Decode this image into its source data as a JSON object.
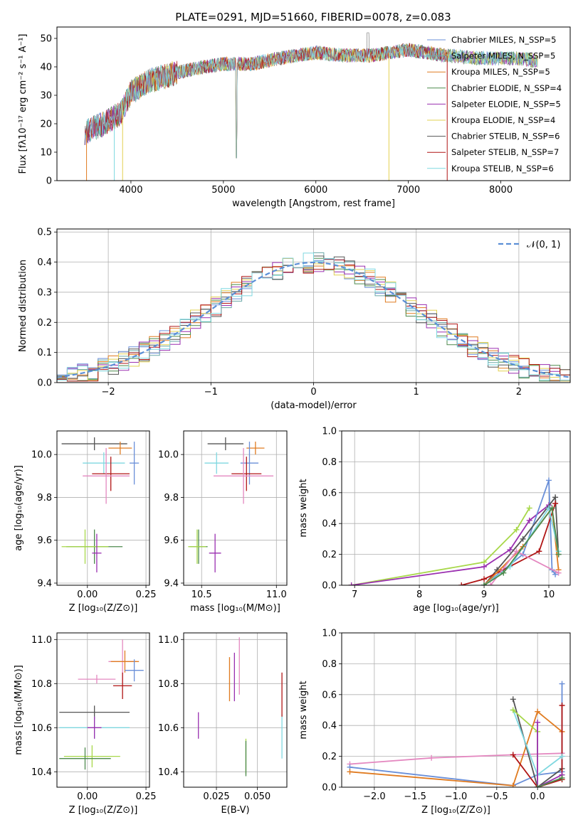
{
  "figure_title": "PLATE=0291, MJD=51660, FIBERID=0078, z=0.083",
  "colors": {
    "chabrier_miles": "#6a8fd8",
    "salpeter_miles": "#6aa8a8",
    "kroupa_miles": "#e07b20",
    "chabrier_elodie": "#4d8a4d",
    "salpeter_elodie": "#9a2fb0",
    "kroupa_elodie": "#e2d050",
    "chabrier_stelib": "#555555",
    "salpeter_stelib": "#b01515",
    "kroupa_stelib": "#7fd8e0",
    "pink": "#e488c0",
    "lime": "#a8d84a",
    "gauss": "#5b8fd6"
  },
  "chart_data": [
    {
      "type": "line",
      "title": "",
      "xlabel": "wavelength [Angstrom, rest frame]",
      "ylabel": "Flux [fλ10⁻¹⁷ erg cm⁻² s⁻¹ A⁻¹]",
      "xlim": [
        3200,
        8750
      ],
      "ylim": [
        0,
        54
      ],
      "xticks": [
        4000,
        5000,
        6000,
        7000,
        8000
      ],
      "yticks": [
        0,
        10,
        20,
        30,
        40,
        50
      ],
      "grid": false,
      "legend_position": "top-right",
      "series": [
        {
          "name": "Chabrier MILES, N_SSP=5",
          "color_key": "chabrier_miles"
        },
        {
          "name": "Salpeter MILES, N_SSP=5",
          "color_key": "salpeter_miles"
        },
        {
          "name": "Kroupa MILES, N_SSP=5",
          "color_key": "kroupa_miles"
        },
        {
          "name": "Chabrier ELODIE, N_SSP=4",
          "color_key": "chabrier_elodie"
        },
        {
          "name": "Salpeter ELODIE, N_SSP=5",
          "color_key": "salpeter_elodie"
        },
        {
          "name": "Kroupa ELODIE, N_SSP=4",
          "color_key": "kroupa_elodie"
        },
        {
          "name": "Chabrier STELIB, N_SSP=6",
          "color_key": "chabrier_stelib"
        },
        {
          "name": "Salpeter STELIB, N_SSP=7",
          "color_key": "salpeter_stelib"
        },
        {
          "name": "Kroupa STELIB, N_SSP=6",
          "color_key": "kroupa_stelib"
        }
      ],
      "continuum": {
        "x": [
          3500,
          3700,
          3900,
          4000,
          4200,
          4500,
          4800,
          5000,
          5300,
          5600,
          5800,
          6000,
          6300,
          6600,
          7000,
          7400,
          7800,
          8200,
          8400
        ],
        "y": [
          17,
          20,
          24,
          31,
          35,
          38,
          40,
          41,
          41,
          43,
          44,
          45,
          44,
          44,
          46,
          44,
          43,
          43,
          42
        ]
      }
    },
    {
      "type": "histogram",
      "title": "",
      "xlabel": "(data-model)/error",
      "ylabel": "Normed distribution",
      "xlim": [
        -2.5,
        2.5
      ],
      "ylim": [
        0,
        0.51
      ],
      "xticks": [
        -2,
        -1,
        0,
        1,
        2
      ],
      "xtick_labels": [
        "−2",
        "−1",
        "0",
        "1",
        "2"
      ],
      "yticks": [
        0.0,
        0.1,
        0.2,
        0.3,
        0.4,
        0.5
      ],
      "ytick_labels": [
        "0.0",
        "0.1",
        "0.2",
        "0.3",
        "0.4",
        "0.5"
      ],
      "grid": true,
      "legend_position": "top-right",
      "reference_curve": {
        "name": "𝒩(0, 1)",
        "color_key": "gauss"
      },
      "bin_width": 0.1
    },
    {
      "type": "scatter",
      "xlabel": "Z [log₁₀(Z/Z⊙)]",
      "ylabel": "age  [log₁₀(age/yr)]",
      "xlim": [
        -0.13,
        0.265
      ],
      "ylim": [
        9.39,
        10.11
      ],
      "xticks": [
        0.0,
        0.25
      ],
      "xtick_labels": [
        "0.00",
        "0.25"
      ],
      "yticks": [
        9.4,
        9.6,
        9.8,
        10.0
      ],
      "ytick_labels": [
        "9.4",
        "9.6",
        "9.8",
        "10.0"
      ],
      "grid": true,
      "points": [
        {
          "x": 0.03,
          "y": 10.05,
          "xerr": 0.14,
          "yerr": 0.03,
          "color_key": "chabrier_stelib"
        },
        {
          "x": 0.14,
          "y": 10.03,
          "xerr": 0.05,
          "yerr": 0.03,
          "color_key": "kroupa_miles"
        },
        {
          "x": 0.2,
          "y": 9.96,
          "xerr": 0.02,
          "yerr": 0.1,
          "color_key": "chabrier_miles"
        },
        {
          "x": 0.07,
          "y": 9.96,
          "xerr": 0.09,
          "yerr": 0.05,
          "color_key": "kroupa_stelib"
        },
        {
          "x": 0.1,
          "y": 9.91,
          "xerr": 0.08,
          "yerr": 0.08,
          "color_key": "salpeter_stelib"
        },
        {
          "x": 0.08,
          "y": 9.9,
          "xerr": 0.1,
          "yerr": 0.13,
          "color_key": "pink"
        },
        {
          "x": 0.03,
          "y": 9.57,
          "xerr": 0.12,
          "yerr": 0.08,
          "color_key": "chabrier_elodie"
        },
        {
          "x": -0.01,
          "y": 9.57,
          "xerr": 0.1,
          "yerr": 0.08,
          "color_key": "lime"
        },
        {
          "x": 0.04,
          "y": 9.54,
          "xerr": 0.02,
          "yerr": 0.09,
          "color_key": "salpeter_elodie"
        }
      ]
    },
    {
      "type": "scatter",
      "xlabel": "mass [log₁₀(M/M⊙)]",
      "ylabel": "",
      "xlim": [
        10.38,
        11.07
      ],
      "ylim": [
        9.39,
        10.11
      ],
      "xticks": [
        10.5,
        11.0
      ],
      "xtick_labels": [
        "10.5",
        "11.0"
      ],
      "yticks": [
        9.4,
        9.6,
        9.8,
        10.0
      ],
      "ytick_labels": [
        "9.4",
        "9.6",
        "9.8",
        "10.0"
      ],
      "grid": true,
      "points": [
        {
          "x": 10.66,
          "y": 10.05,
          "xerr": 0.12,
          "yerr": 0.03,
          "color_key": "chabrier_stelib"
        },
        {
          "x": 10.86,
          "y": 10.03,
          "xerr": 0.06,
          "yerr": 0.03,
          "color_key": "kroupa_miles"
        },
        {
          "x": 10.82,
          "y": 9.96,
          "xerr": 0.06,
          "yerr": 0.1,
          "color_key": "chabrier_miles"
        },
        {
          "x": 10.6,
          "y": 9.96,
          "xerr": 0.08,
          "yerr": 0.05,
          "color_key": "kroupa_stelib"
        },
        {
          "x": 10.8,
          "y": 9.91,
          "xerr": 0.1,
          "yerr": 0.08,
          "color_key": "salpeter_stelib"
        },
        {
          "x": 10.78,
          "y": 9.9,
          "xerr": 0.2,
          "yerr": 0.13,
          "color_key": "pink"
        },
        {
          "x": 10.48,
          "y": 9.57,
          "xerr": 0.06,
          "yerr": 0.08,
          "color_key": "chabrier_elodie"
        },
        {
          "x": 10.47,
          "y": 9.57,
          "xerr": 0.06,
          "yerr": 0.08,
          "color_key": "lime"
        },
        {
          "x": 10.59,
          "y": 9.54,
          "xerr": 0.04,
          "yerr": 0.09,
          "color_key": "salpeter_elodie"
        }
      ]
    },
    {
      "type": "line",
      "xlabel": "age  [log₁₀(age/yr)]",
      "ylabel": "mass weight",
      "xlim": [
        6.8,
        10.33
      ],
      "ylim": [
        0,
        1
      ],
      "xticks": [
        7,
        8,
        9,
        10
      ],
      "yticks": [
        0.0,
        0.2,
        0.4,
        0.6,
        0.8,
        1.0
      ],
      "ytick_labels": [
        "0.0",
        "0.2",
        "0.4",
        "0.6",
        "0.8",
        "1.0"
      ],
      "grid": true,
      "series": [
        {
          "color_key": "lime",
          "x": [
            6.95,
            9.0,
            9.5,
            9.7
          ],
          "y": [
            0.0,
            0.15,
            0.36,
            0.5
          ]
        },
        {
          "color_key": "salpeter_elodie",
          "x": [
            6.95,
            9.0,
            9.4,
            9.7,
            10.0
          ],
          "y": [
            0.0,
            0.12,
            0.23,
            0.42,
            0.52
          ]
        },
        {
          "color_key": "chabrier_miles",
          "x": [
            9.0,
            9.3,
            9.6,
            10.0,
            10.05,
            10.1
          ],
          "y": [
            0.0,
            0.1,
            0.2,
            0.68,
            0.1,
            0.07
          ]
        },
        {
          "color_key": "chabrier_stelib",
          "x": [
            9.0,
            9.2,
            9.6,
            10.1,
            10.15
          ],
          "y": [
            0.0,
            0.1,
            0.3,
            0.57,
            0.2
          ]
        },
        {
          "color_key": "salpeter_stelib",
          "x": [
            8.65,
            9.0,
            9.3,
            9.85,
            10.1
          ],
          "y": [
            0.0,
            0.04,
            0.1,
            0.22,
            0.53
          ]
        },
        {
          "color_key": "kroupa_miles",
          "x": [
            9.0,
            9.6,
            10.05,
            10.15
          ],
          "y": [
            0.0,
            0.25,
            0.5,
            0.1
          ]
        },
        {
          "color_key": "pink",
          "x": [
            9.1,
            9.5,
            10.15
          ],
          "y": [
            0.0,
            0.22,
            0.08
          ]
        },
        {
          "color_key": "kroupa_stelib",
          "x": [
            9.0,
            9.4,
            10.0,
            10.15
          ],
          "y": [
            0.0,
            0.12,
            0.5,
            0.22
          ]
        },
        {
          "color_key": "chabrier_elodie",
          "x": [
            9.0,
            9.3,
            10.05,
            10.15
          ],
          "y": [
            0.0,
            0.08,
            0.5,
            0.2
          ]
        }
      ]
    },
    {
      "type": "scatter",
      "xlabel": "Z [log₁₀(Z/Z⊙)]",
      "ylabel": "mass [log₁₀(M/M⊙)]",
      "xlim": [
        -0.13,
        0.265
      ],
      "ylim": [
        10.33,
        11.03
      ],
      "xticks": [
        0.0,
        0.25
      ],
      "xtick_labels": [
        "0.00",
        "0.25"
      ],
      "yticks": [
        10.4,
        10.6,
        10.8,
        11.0
      ],
      "ytick_labels": [
        "10.4",
        "10.6",
        "10.8",
        "11.0"
      ],
      "grid": true,
      "points": [
        {
          "x": 0.15,
          "y": 10.9,
          "xerr": 0.06,
          "yerr": 0.1,
          "color_key": "pink"
        },
        {
          "x": 0.16,
          "y": 10.9,
          "xerr": 0.06,
          "yerr": 0.05,
          "color_key": "kroupa_miles"
        },
        {
          "x": 0.2,
          "y": 10.86,
          "xerr": 0.04,
          "yerr": 0.05,
          "color_key": "chabrier_miles"
        },
        {
          "x": 0.04,
          "y": 10.82,
          "xerr": 0.08,
          "yerr": 0.02,
          "color_key": "pink"
        },
        {
          "x": 0.15,
          "y": 10.79,
          "xerr": 0.04,
          "yerr": 0.06,
          "color_key": "salpeter_stelib"
        },
        {
          "x": 0.03,
          "y": 10.67,
          "xerr": 0.15,
          "yerr": 0.03,
          "color_key": "chabrier_stelib"
        },
        {
          "x": 0.03,
          "y": 10.6,
          "xerr": 0.15,
          "yerr": 0.05,
          "color_key": "kroupa_stelib"
        },
        {
          "x": 0.03,
          "y": 10.6,
          "xerr": 0.03,
          "yerr": 0.05,
          "color_key": "salpeter_elodie"
        },
        {
          "x": 0.02,
          "y": 10.47,
          "xerr": 0.12,
          "yerr": 0.05,
          "color_key": "lime"
        },
        {
          "x": -0.01,
          "y": 10.46,
          "xerr": 0.11,
          "yerr": 0.05,
          "color_key": "chabrier_elodie"
        }
      ]
    },
    {
      "type": "scatter",
      "xlabel": "E(B-V)",
      "ylabel": "",
      "xlim": [
        0.005,
        0.068
      ],
      "ylim": [
        10.33,
        11.03
      ],
      "xticks": [
        0.025,
        0.05
      ],
      "xtick_labels": [
        "0.025",
        "0.050"
      ],
      "yticks": [
        10.4,
        10.6,
        10.8,
        11.0
      ],
      "ytick_labels": [
        "10.4",
        "10.6",
        "10.8",
        "11.0"
      ],
      "grid": true,
      "points": [
        {
          "x": 0.014,
          "y": 10.61,
          "yerr": 0.06,
          "color_key": "salpeter_elodie"
        },
        {
          "x": 0.033,
          "y": 10.82,
          "yerr": 0.1,
          "color_key": "kroupa_miles"
        },
        {
          "x": 0.036,
          "y": 10.83,
          "yerr": 0.11,
          "color_key": "salpeter_elodie"
        },
        {
          "x": 0.039,
          "y": 10.88,
          "yerr": 0.13,
          "color_key": "pink"
        },
        {
          "x": 0.043,
          "y": 10.47,
          "yerr": 0.08,
          "color_key": "lime"
        },
        {
          "x": 0.043,
          "y": 10.46,
          "yerr": 0.08,
          "color_key": "chabrier_elodie"
        },
        {
          "x": 0.065,
          "y": 10.56,
          "yerr": 0.1,
          "color_key": "kroupa_stelib"
        },
        {
          "x": 0.065,
          "y": 10.75,
          "yerr": 0.1,
          "color_key": "salpeter_stelib"
        }
      ]
    },
    {
      "type": "line",
      "xlabel": "Z [log₁₀(Z/Z⊙)]",
      "ylabel": "mass weight",
      "xlim": [
        -2.4,
        0.4
      ],
      "ylim": [
        0,
        1
      ],
      "xticks": [
        -2.0,
        -1.5,
        -1.0,
        -0.5,
        0.0
      ],
      "xtick_labels": [
        "−2.0",
        "−1.5",
        "−1.0",
        "−0.5",
        "0.0"
      ],
      "yticks": [
        0.0,
        0.2,
        0.4,
        0.6,
        0.8,
        1.0
      ],
      "ytick_labels": [
        "0.0",
        "0.2",
        "0.4",
        "0.6",
        "0.8",
        "1.0"
      ],
      "grid": true,
      "series": [
        {
          "color_key": "pink",
          "x": [
            -2.3,
            -1.3,
            -0.3,
            0.3
          ],
          "y": [
            0.15,
            0.19,
            0.21,
            0.22
          ]
        },
        {
          "color_key": "chabrier_miles",
          "x": [
            -2.3,
            -0.3,
            0.0,
            0.3,
            0.3
          ],
          "y": [
            0.13,
            0.01,
            0.08,
            0.1,
            0.67
          ]
        },
        {
          "color_key": "kroupa_miles",
          "x": [
            -2.3,
            -0.3,
            0.0,
            0.3
          ],
          "y": [
            0.1,
            0.01,
            0.49,
            0.36
          ]
        },
        {
          "color_key": "chabrier_stelib",
          "x": [
            -0.3,
            0.0,
            0.3
          ],
          "y": [
            0.57,
            0.0,
            0.12
          ]
        },
        {
          "color_key": "salpeter_stelib",
          "x": [
            -0.3,
            0.0,
            0.3,
            0.3
          ],
          "y": [
            0.21,
            0.0,
            0.05,
            0.53
          ]
        },
        {
          "color_key": "kroupa_stelib",
          "x": [
            -0.3,
            0.0,
            0.3
          ],
          "y": [
            0.5,
            0.08,
            0.2
          ]
        },
        {
          "color_key": "lime",
          "x": [
            -0.3,
            0.0,
            0.0
          ],
          "y": [
            0.5,
            0.36,
            0.0
          ]
        },
        {
          "color_key": "salpeter_elodie",
          "x": [
            0.0,
            0.0,
            0.3
          ],
          "y": [
            0.42,
            0.0,
            0.08
          ]
        },
        {
          "color_key": "chabrier_elodie",
          "x": [
            0.0,
            0.3
          ],
          "y": [
            0.0,
            0.06
          ]
        }
      ]
    }
  ]
}
